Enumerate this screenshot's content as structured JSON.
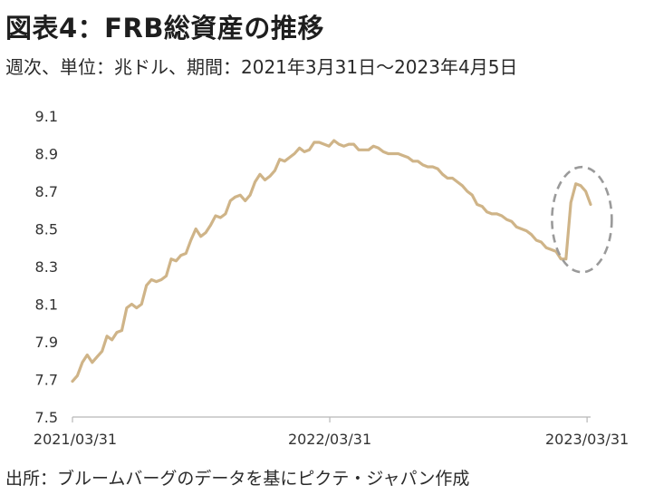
{
  "header": {
    "title": "図表4：FRB総資産の推移",
    "subtitle": "週次、単位：兆ドル、期間：2021年3月31日～2023年4月5日"
  },
  "footer": {
    "source": "出所：ブルームバーグのデータを基にピクテ・ジャパン作成"
  },
  "chart_data": {
    "type": "line",
    "title": "図表4：FRB総資産の推移",
    "subtitle": "週次、単位：兆ドル、期間：2021年3月31日～2023年4月5日",
    "xlabel": "",
    "ylabel": "",
    "ylim": [
      7.5,
      9.1
    ],
    "yticks": [
      "9.1",
      "8.9",
      "8.7",
      "8.5",
      "8.3",
      "8.1",
      "7.9",
      "7.7",
      "7.5"
    ],
    "xticks": [
      "2021/03/31",
      "2022/03/31",
      "2023/03/31"
    ],
    "xlim": [
      "2021-03-31",
      "2023-04-05"
    ],
    "grid": false,
    "line_color": "#cfb488",
    "annotation": {
      "type": "dashed-ellipse",
      "target": "2023-03 spike",
      "color": "#9a9a9a"
    },
    "series": [
      {
        "x": [
          "2021-03-31",
          "2021-04-07",
          "2021-04-14",
          "2021-04-21",
          "2021-04-28",
          "2021-05-05",
          "2021-05-12",
          "2021-05-19",
          "2021-05-26",
          "2021-06-02",
          "2021-06-09",
          "2021-06-16",
          "2021-06-23",
          "2021-06-30",
          "2021-07-07",
          "2021-07-14",
          "2021-07-21",
          "2021-07-28",
          "2021-08-04",
          "2021-08-11",
          "2021-08-18",
          "2021-08-25",
          "2021-09-01",
          "2021-09-08",
          "2021-09-15",
          "2021-09-22",
          "2021-09-29",
          "2021-10-06",
          "2021-10-13",
          "2021-10-20",
          "2021-10-27",
          "2021-11-03",
          "2021-11-10",
          "2021-11-17",
          "2021-11-24",
          "2021-12-01",
          "2021-12-08",
          "2021-12-15",
          "2021-12-22",
          "2021-12-29",
          "2022-01-05",
          "2022-01-12",
          "2022-01-19",
          "2022-01-26",
          "2022-02-02",
          "2022-02-09",
          "2022-02-16",
          "2022-02-23",
          "2022-03-02",
          "2022-03-09",
          "2022-03-16",
          "2022-03-23",
          "2022-03-30",
          "2022-04-06",
          "2022-04-13",
          "2022-04-20",
          "2022-04-27",
          "2022-05-04",
          "2022-05-11",
          "2022-05-18",
          "2022-05-25",
          "2022-06-01",
          "2022-06-08",
          "2022-06-15",
          "2022-06-22",
          "2022-06-29",
          "2022-07-06",
          "2022-07-13",
          "2022-07-20",
          "2022-07-27",
          "2022-08-03",
          "2022-08-10",
          "2022-08-17",
          "2022-08-24",
          "2022-08-31",
          "2022-09-07",
          "2022-09-14",
          "2022-09-21",
          "2022-09-28",
          "2022-10-05",
          "2022-10-12",
          "2022-10-19",
          "2022-10-26",
          "2022-11-02",
          "2022-11-09",
          "2022-11-16",
          "2022-11-23",
          "2022-11-30",
          "2022-12-07",
          "2022-12-14",
          "2022-12-21",
          "2022-12-28",
          "2023-01-04",
          "2023-01-11",
          "2023-01-18",
          "2023-01-25",
          "2023-02-01",
          "2023-02-08",
          "2023-02-15",
          "2023-02-22",
          "2023-03-01",
          "2023-03-08",
          "2023-03-15",
          "2023-03-22",
          "2023-03-29",
          "2023-04-05"
        ],
        "values": [
          7.69,
          7.72,
          7.79,
          7.83,
          7.79,
          7.82,
          7.85,
          7.93,
          7.91,
          7.95,
          7.96,
          8.08,
          8.1,
          8.08,
          8.1,
          8.2,
          8.23,
          8.22,
          8.23,
          8.25,
          8.34,
          8.33,
          8.36,
          8.37,
          8.44,
          8.5,
          8.46,
          8.48,
          8.52,
          8.57,
          8.56,
          8.58,
          8.65,
          8.67,
          8.68,
          8.65,
          8.68,
          8.75,
          8.79,
          8.76,
          8.78,
          8.81,
          8.87,
          8.86,
          8.88,
          8.9,
          8.93,
          8.91,
          8.92,
          8.96,
          8.96,
          8.95,
          8.94,
          8.97,
          8.95,
          8.94,
          8.95,
          8.95,
          8.92,
          8.92,
          8.92,
          8.94,
          8.93,
          8.91,
          8.9,
          8.9,
          8.9,
          8.89,
          8.88,
          8.86,
          8.86,
          8.84,
          8.83,
          8.83,
          8.82,
          8.79,
          8.77,
          8.77,
          8.75,
          8.73,
          8.7,
          8.68,
          8.63,
          8.62,
          8.59,
          8.58,
          8.58,
          8.57,
          8.55,
          8.54,
          8.51,
          8.5,
          8.49,
          8.47,
          8.44,
          8.43,
          8.4,
          8.39,
          8.38,
          8.34,
          8.34,
          8.64,
          8.74,
          8.73,
          8.7,
          8.63
        ]
      }
    ]
  }
}
